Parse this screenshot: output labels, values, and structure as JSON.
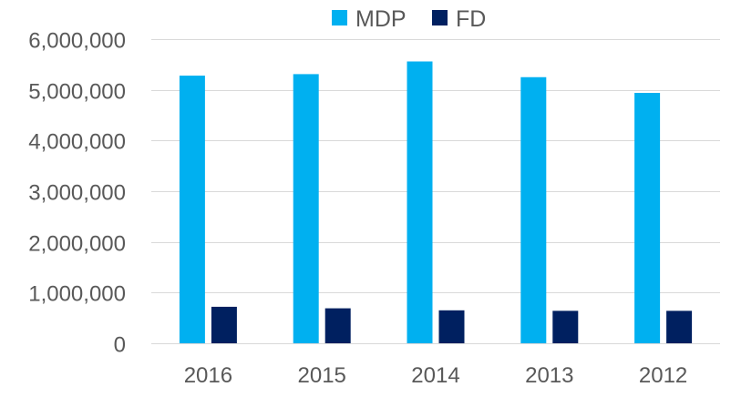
{
  "chart_data": {
    "type": "bar",
    "title": "",
    "xlabel": "",
    "ylabel": "",
    "categories": [
      "2016",
      "2015",
      "2014",
      "2013",
      "2012"
    ],
    "series": [
      {
        "name": "MDP",
        "color": "#00b0f0",
        "values": [
          5280000,
          5310000,
          5560000,
          5250000,
          4940000
        ]
      },
      {
        "name": "FD",
        "color": "#002060",
        "values": [
          720000,
          690000,
          650000,
          640000,
          640000
        ]
      }
    ],
    "ylim": [
      0,
      6000000
    ],
    "yticks": [
      0,
      1000000,
      2000000,
      3000000,
      4000000,
      5000000,
      6000000
    ],
    "ytick_labels": [
      "0",
      "1,000,000",
      "2,000,000",
      "3,000,000",
      "4,000,000",
      "5,000,000",
      "6,000,000"
    ],
    "grid": true,
    "legend_position": "top-center"
  }
}
